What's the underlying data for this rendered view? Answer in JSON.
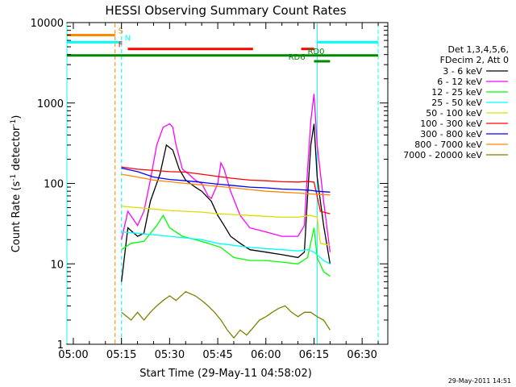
{
  "chart_data": {
    "type": "line",
    "title": "HESSI Observing Summary Count Rates",
    "xlabel": "Start Time (29-May-11 04:58:02)",
    "ylabel_prefix": "Count Rate (s",
    "ylabel_sup1": "-1",
    "ylabel_mid": " detector",
    "ylabel_sup2": "-1",
    "ylabel_suffix": ")",
    "y_scale": "log",
    "xlim": [
      "04:58",
      "06:38"
    ],
    "ylim": [
      1,
      10000
    ],
    "x_ticks": [
      "05:00",
      "05:15",
      "05:30",
      "05:45",
      "06:00",
      "06:15",
      "06:30"
    ],
    "y_ticks": [
      "1",
      "10",
      "100",
      "1000",
      "10000"
    ],
    "grid": false,
    "legend_placement": "right",
    "legend_header": [
      "Det 1,3,4,5,6,",
      "FDecim 2, Att 0"
    ],
    "timestamp": "29-May-2011 14:51",
    "series": [
      {
        "name": "3 - 6 keV",
        "color": "#000000",
        "points": [
          [
            "05:15",
            6
          ],
          [
            "05:17",
            28
          ],
          [
            "05:20",
            22
          ],
          [
            "05:22",
            24
          ],
          [
            "05:24",
            60
          ],
          [
            "05:27",
            130
          ],
          [
            "05:29",
            300
          ],
          [
            "05:31",
            260
          ],
          [
            "05:33",
            150
          ],
          [
            "05:35",
            110
          ],
          [
            "05:38",
            90
          ],
          [
            "05:40",
            80
          ],
          [
            "05:43",
            60
          ],
          [
            "05:45",
            40
          ],
          [
            "05:47",
            30
          ],
          [
            "05:49",
            22
          ],
          [
            "05:52",
            18
          ],
          [
            "05:55",
            15
          ],
          [
            "06:00",
            14
          ],
          [
            "06:05",
            13
          ],
          [
            "06:10",
            12
          ],
          [
            "06:12",
            14
          ],
          [
            "06:13",
            70
          ],
          [
            "06:14",
            300
          ],
          [
            "06:15",
            550
          ],
          [
            "06:16",
            120
          ],
          [
            "06:18",
            30
          ],
          [
            "06:20",
            10
          ]
        ]
      },
      {
        "name": "6 - 12 keV",
        "color": "#ff00ff",
        "points": [
          [
            "05:15",
            20
          ],
          [
            "05:17",
            45
          ],
          [
            "05:20",
            30
          ],
          [
            "05:22",
            45
          ],
          [
            "05:24",
            110
          ],
          [
            "05:26",
            300
          ],
          [
            "05:28",
            500
          ],
          [
            "05:30",
            550
          ],
          [
            "05:31",
            500
          ],
          [
            "05:32",
            300
          ],
          [
            "05:34",
            150
          ],
          [
            "05:36",
            130
          ],
          [
            "05:38",
            110
          ],
          [
            "05:40",
            100
          ],
          [
            "05:42",
            70
          ],
          [
            "05:43",
            65
          ],
          [
            "05:45",
            100
          ],
          [
            "05:46",
            180
          ],
          [
            "05:47",
            150
          ],
          [
            "05:49",
            80
          ],
          [
            "05:52",
            40
          ],
          [
            "05:55",
            28
          ],
          [
            "06:00",
            25
          ],
          [
            "06:05",
            22
          ],
          [
            "06:10",
            22
          ],
          [
            "06:12",
            30
          ],
          [
            "06:13",
            150
          ],
          [
            "06:14",
            600
          ],
          [
            "06:15",
            1300
          ],
          [
            "06:16",
            300
          ],
          [
            "06:18",
            60
          ],
          [
            "06:20",
            14
          ]
        ]
      },
      {
        "name": "12 - 25 keV",
        "color": "#00ff00",
        "points": [
          [
            "05:15",
            15
          ],
          [
            "05:18",
            18
          ],
          [
            "05:22",
            19
          ],
          [
            "05:26",
            30
          ],
          [
            "05:28",
            40
          ],
          [
            "05:30",
            28
          ],
          [
            "05:34",
            22
          ],
          [
            "05:38",
            20
          ],
          [
            "05:42",
            18
          ],
          [
            "05:46",
            16
          ],
          [
            "05:50",
            12
          ],
          [
            "05:55",
            11
          ],
          [
            "06:00",
            11
          ],
          [
            "06:05",
            10.5
          ],
          [
            "06:10",
            10
          ],
          [
            "06:13",
            12
          ],
          [
            "06:15",
            28
          ],
          [
            "06:16",
            12
          ],
          [
            "06:18",
            8
          ],
          [
            "06:20",
            7
          ]
        ]
      },
      {
        "name": "25 - 50 keV",
        "color": "#00ffff",
        "points": [
          [
            "05:15",
            25
          ],
          [
            "05:20",
            24
          ],
          [
            "05:25",
            23
          ],
          [
            "05:30",
            22
          ],
          [
            "05:35",
            21
          ],
          [
            "05:40",
            20
          ],
          [
            "05:45",
            18
          ],
          [
            "05:50",
            17
          ],
          [
            "05:55",
            16
          ],
          [
            "06:00",
            15.5
          ],
          [
            "06:05",
            15
          ],
          [
            "06:10",
            14.5
          ],
          [
            "06:13",
            15
          ],
          [
            "06:15",
            14
          ],
          [
            "06:18",
            11
          ],
          [
            "06:20",
            10
          ]
        ]
      },
      {
        "name": "50 - 100 keV",
        "color": "#dddd00",
        "points": [
          [
            "05:15",
            52
          ],
          [
            "05:20",
            50
          ],
          [
            "05:25",
            48
          ],
          [
            "05:30",
            46
          ],
          [
            "05:35",
            45
          ],
          [
            "05:40",
            44
          ],
          [
            "05:45",
            42
          ],
          [
            "05:50",
            41
          ],
          [
            "05:55",
            40
          ],
          [
            "06:00",
            39
          ],
          [
            "06:05",
            38
          ],
          [
            "06:10",
            38
          ],
          [
            "06:14",
            40
          ],
          [
            "06:16",
            38
          ],
          [
            "06:17",
            18
          ],
          [
            "06:20",
            17
          ]
        ]
      },
      {
        "name": "100 - 300 keV",
        "color": "#ff0000",
        "points": [
          [
            "05:15",
            160
          ],
          [
            "05:20",
            150
          ],
          [
            "05:25",
            145
          ],
          [
            "05:30",
            140
          ],
          [
            "05:35",
            138
          ],
          [
            "05:40",
            130
          ],
          [
            "05:45",
            122
          ],
          [
            "05:50",
            115
          ],
          [
            "05:55",
            110
          ],
          [
            "06:00",
            108
          ],
          [
            "06:05",
            105
          ],
          [
            "06:10",
            104
          ],
          [
            "06:13",
            106
          ],
          [
            "06:15",
            104
          ],
          [
            "06:17",
            45
          ],
          [
            "06:20",
            42
          ]
        ]
      },
      {
        "name": "300 - 800 keV",
        "color": "#0000ff",
        "points": [
          [
            "05:15",
            155
          ],
          [
            "05:20",
            140
          ],
          [
            "05:25",
            120
          ],
          [
            "05:30",
            112
          ],
          [
            "05:35",
            108
          ],
          [
            "05:40",
            103
          ],
          [
            "05:45",
            98
          ],
          [
            "05:50",
            94
          ],
          [
            "05:55",
            90
          ],
          [
            "06:00",
            88
          ],
          [
            "06:05",
            85
          ],
          [
            "06:10",
            84
          ],
          [
            "06:14",
            82
          ],
          [
            "06:16",
            80
          ],
          [
            "06:20",
            78
          ]
        ]
      },
      {
        "name": "800 - 7000 keV",
        "color": "#ff8800",
        "points": [
          [
            "05:15",
            130
          ],
          [
            "05:20",
            120
          ],
          [
            "05:25",
            110
          ],
          [
            "05:30",
            105
          ],
          [
            "05:35",
            100
          ],
          [
            "05:40",
            96
          ],
          [
            "05:45",
            92
          ],
          [
            "05:50",
            88
          ],
          [
            "05:55",
            84
          ],
          [
            "06:00",
            80
          ],
          [
            "06:05",
            78
          ],
          [
            "06:10",
            76
          ],
          [
            "06:14",
            74
          ],
          [
            "06:16",
            73
          ],
          [
            "06:20",
            72
          ]
        ]
      },
      {
        "name": "7000 - 20000 keV",
        "color": "#808000",
        "points": [
          [
            "05:15",
            2.5
          ],
          [
            "05:18",
            2
          ],
          [
            "05:20",
            2.5
          ],
          [
            "05:22",
            2
          ],
          [
            "05:24",
            2.5
          ],
          [
            "05:26",
            3
          ],
          [
            "05:28",
            3.5
          ],
          [
            "05:30",
            4
          ],
          [
            "05:32",
            3.5
          ],
          [
            "05:35",
            4.5
          ],
          [
            "05:38",
            4
          ],
          [
            "05:40",
            3.5
          ],
          [
            "05:42",
            3
          ],
          [
            "05:44",
            2.5
          ],
          [
            "05:46",
            2
          ],
          [
            "05:48",
            1.5
          ],
          [
            "05:50",
            1.2
          ],
          [
            "05:52",
            1.5
          ],
          [
            "05:54",
            1.3
          ],
          [
            "05:56",
            1.6
          ],
          [
            "05:58",
            2
          ],
          [
            "06:00",
            2.2
          ],
          [
            "06:02",
            2.5
          ],
          [
            "06:04",
            2.8
          ],
          [
            "06:06",
            3
          ],
          [
            "06:08",
            2.5
          ],
          [
            "06:10",
            2.2
          ],
          [
            "06:12",
            2.5
          ],
          [
            "06:14",
            2.5
          ],
          [
            "06:16",
            2.2
          ],
          [
            "06:18",
            2
          ],
          [
            "06:20",
            1.5
          ]
        ]
      }
    ],
    "flags": [
      {
        "label": "S",
        "color": "#ff8800",
        "y": 7000,
        "segments": [
          [
            "04:58",
            "05:13"
          ]
        ],
        "label_at": "05:14"
      },
      {
        "label": "N",
        "color": "#00ffff",
        "y": 5700,
        "segments": [
          [
            "04:58",
            "05:15"
          ],
          [
            "06:16",
            "06:35"
          ]
        ],
        "label_at": "05:16"
      },
      {
        "label": "F",
        "color": "#ff0000",
        "y": 4700,
        "segments": [
          [
            "05:17",
            "05:56"
          ],
          [
            "06:11",
            "06:15"
          ]
        ],
        "label_at": "05:14"
      },
      {
        "label": "RD0",
        "color": "#008800",
        "y": 3900,
        "segments": [
          [
            "04:58",
            "06:35"
          ]
        ],
        "label_at": "06:13"
      },
      {
        "label": "RD6",
        "color": "#008800",
        "y": 3300,
        "segments": [
          [
            "06:15",
            "06:20"
          ]
        ],
        "label_at": "06:07"
      }
    ],
    "vertical_lines": [
      {
        "x": "04:58",
        "color": "#00ffff",
        "style": "solid"
      },
      {
        "x": "05:13",
        "color": "#ff8800",
        "style": "dashed"
      },
      {
        "x": "05:15",
        "color": "#00ffff",
        "style": "dashed"
      },
      {
        "x": "06:16",
        "color": "#00ffff",
        "style": "solid"
      },
      {
        "x": "06:35",
        "color": "#00ffff",
        "style": "dashed"
      }
    ]
  }
}
